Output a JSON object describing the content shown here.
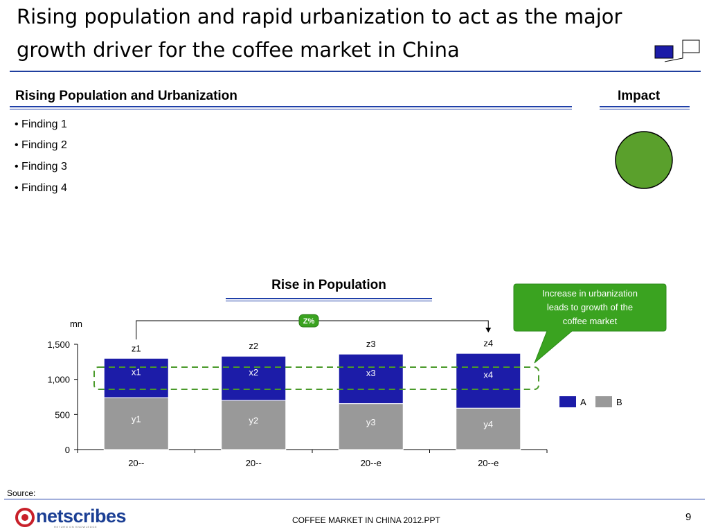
{
  "slide": {
    "title_line1": "Rising population and rapid urbanization to act as the major",
    "title_line2": "growth driver for the coffee market in China",
    "section_heading": "Rising Population and Urbanization",
    "impact_heading": "Impact",
    "findings": [
      "• Finding 1",
      "• Finding 2",
      "• Finding 3",
      "• Finding 4"
    ],
    "impact_color": "#5aa02c",
    "callout_text": [
      "Increase in urbanization",
      "leads to growth of the",
      "coffee market"
    ],
    "callout_color": "#3aa320",
    "source_label": "Source:",
    "footer_center": "COFFEE MARKET IN CHINA 2012.PPT",
    "page_number": "9",
    "logo_text": "netscribes",
    "logo_tagline": "RETURN ON KNOWLEDGE",
    "accent_color": "#1f3fa8"
  },
  "chart_data": {
    "type": "bar",
    "stacked": true,
    "title": "Rise in Population",
    "unit_label": "mn",
    "categories": [
      "20--",
      "20--",
      "20--e",
      "20--e"
    ],
    "series": [
      {
        "name": "B",
        "color": "#999999",
        "values": [
          740,
          700,
          655,
          590
        ],
        "labels": [
          "y1",
          "y2",
          "y3",
          "y4"
        ]
      },
      {
        "name": "A",
        "color": "#1c1ca8",
        "values": [
          560,
          630,
          705,
          780
        ],
        "labels": [
          "x1",
          "x2",
          "x3",
          "x4"
        ]
      }
    ],
    "total_labels": [
      "z1",
      "z2",
      "z3",
      "z4"
    ],
    "growth_label": "Z%",
    "ylim": [
      0,
      1500
    ],
    "yticks": [
      0,
      500,
      1000,
      1500
    ],
    "ytick_labels": [
      "0",
      "500",
      "1,000",
      "1,500"
    ],
    "legend_position": "right",
    "grid": false
  }
}
